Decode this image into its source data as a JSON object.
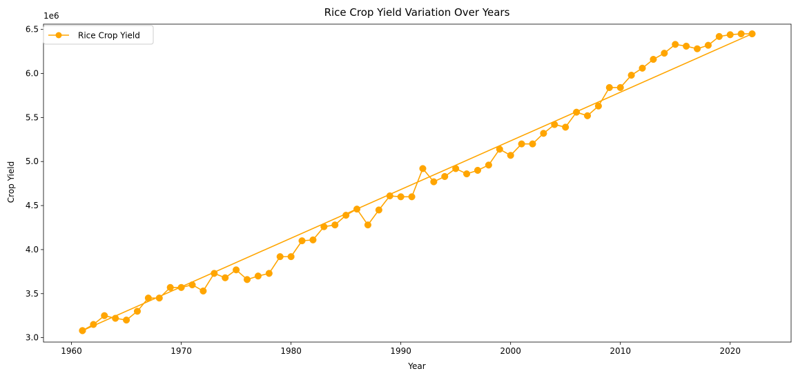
{
  "chart_data": {
    "type": "line",
    "title": "Rice Crop Yield Variation Over Years",
    "xlabel": "Year",
    "ylabel": "Crop Yield",
    "y_offset_label": "1e6",
    "xlim": [
      1957.45,
      2025.55
    ],
    "ylim": [
      2.95,
      6.56
    ],
    "x_ticks": [
      1960,
      1970,
      1980,
      1990,
      2000,
      2010,
      2020
    ],
    "y_ticks": [
      3.0,
      3.5,
      4.0,
      4.5,
      5.0,
      5.5,
      6.0,
      6.5
    ],
    "grid": false,
    "legend_position": "upper-left",
    "series": [
      {
        "name": "Rice Crop Yield",
        "color": "#FFA500",
        "marker": "circle",
        "x": [
          1961,
          1962,
          1963,
          1964,
          1965,
          1966,
          1967,
          1968,
          1969,
          1970,
          1971,
          1972,
          1973,
          1974,
          1975,
          1976,
          1977,
          1978,
          1979,
          1980,
          1981,
          1982,
          1983,
          1984,
          1985,
          1986,
          1987,
          1988,
          1989,
          1990,
          1991,
          1992,
          1993,
          1994,
          1995,
          1996,
          1997,
          1998,
          1999,
          2000,
          2001,
          2002,
          2003,
          2004,
          2005,
          2006,
          2007,
          2008,
          2009,
          2010,
          2011,
          2012,
          2013,
          2014,
          2015,
          2016,
          2017,
          2018,
          2019,
          2020,
          2021,
          2022,
          1961
        ],
        "values": [
          3.08,
          3.15,
          3.25,
          3.22,
          3.2,
          3.3,
          3.45,
          3.45,
          3.57,
          3.57,
          3.6,
          3.53,
          3.73,
          3.68,
          3.77,
          3.66,
          3.7,
          3.73,
          3.92,
          3.92,
          4.1,
          4.11,
          4.26,
          4.28,
          4.39,
          4.46,
          4.28,
          4.45,
          4.61,
          4.6,
          4.6,
          4.92,
          4.77,
          4.83,
          4.92,
          4.86,
          4.9,
          4.96,
          5.14,
          5.07,
          5.2,
          5.2,
          5.32,
          5.42,
          5.39,
          5.56,
          5.52,
          5.63,
          5.84,
          5.84,
          5.98,
          6.06,
          6.16,
          6.23,
          6.33,
          6.31,
          6.28,
          6.32,
          6.42,
          6.44,
          6.45,
          6.45,
          3.08
        ]
      }
    ]
  }
}
